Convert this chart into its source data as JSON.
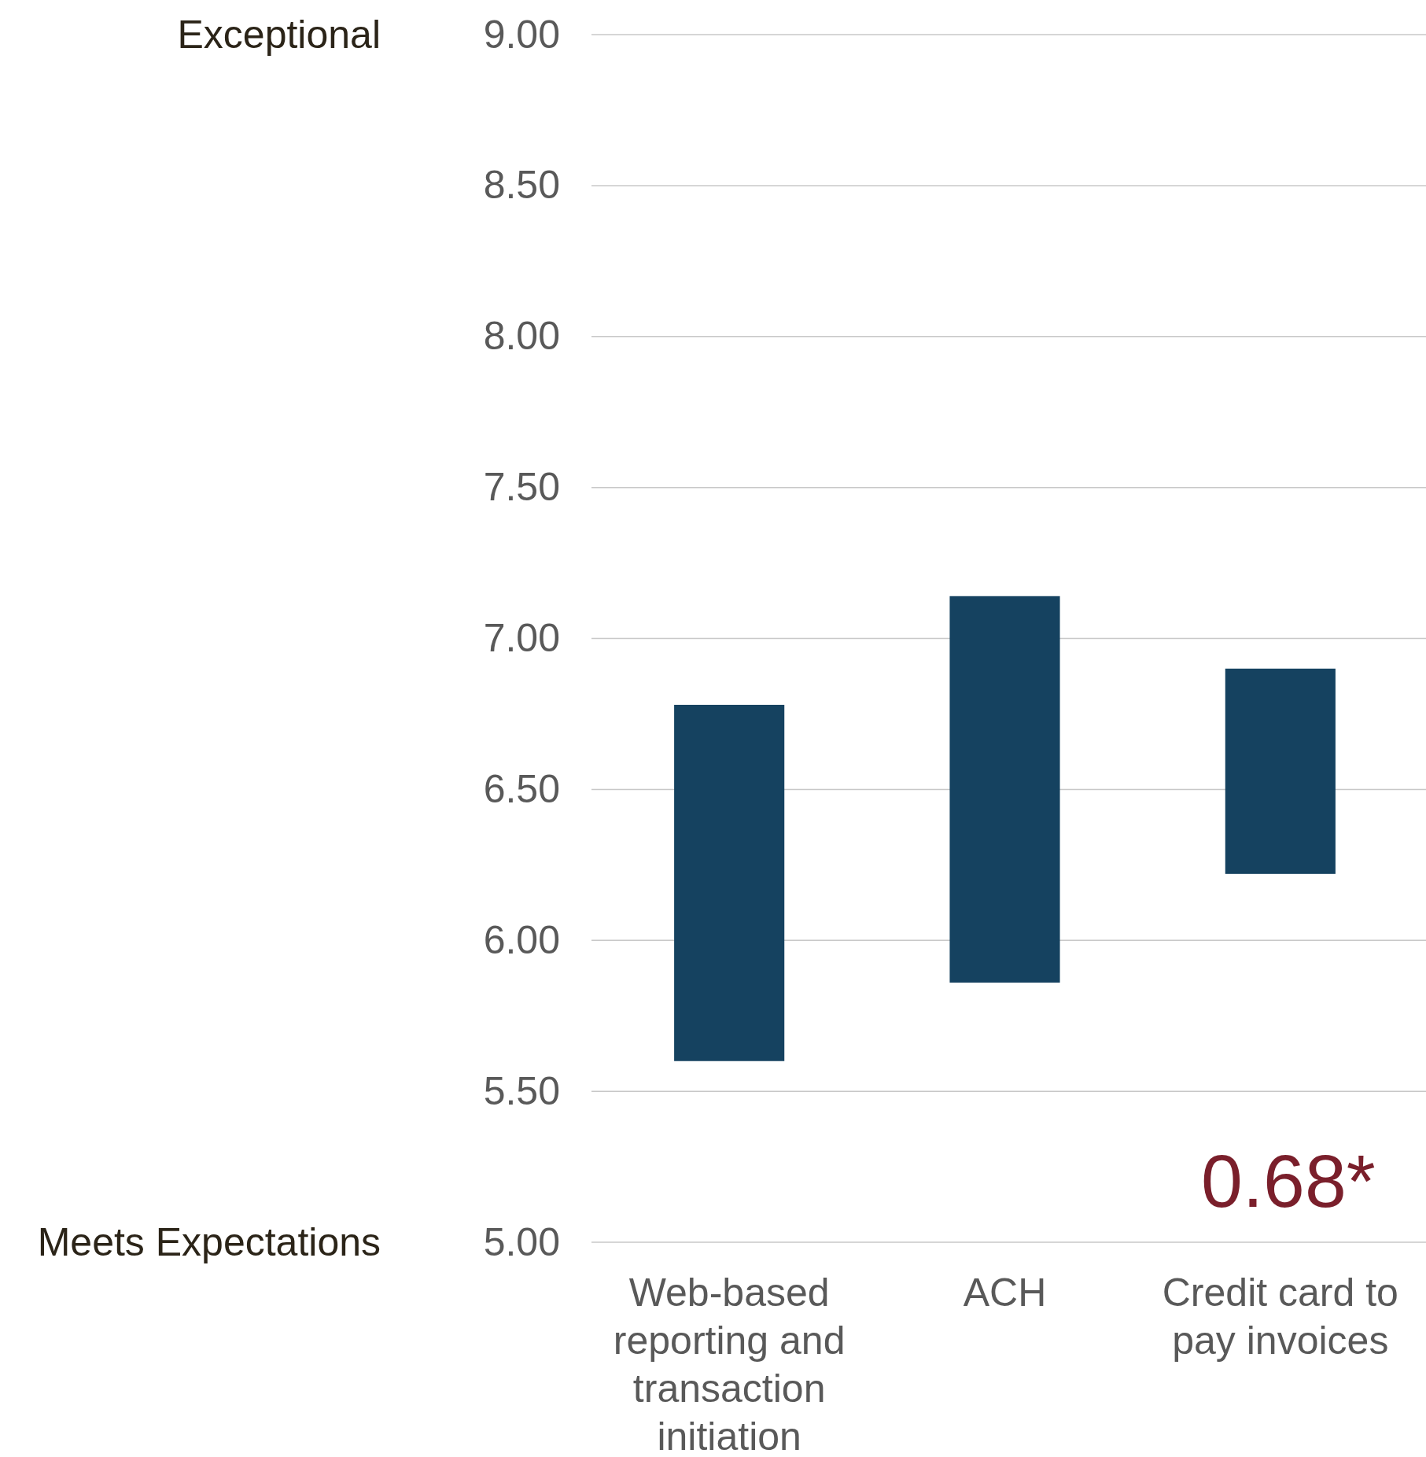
{
  "chart_data": {
    "type": "bar",
    "categories": [
      "Web-based reporting and transaction initiation",
      "ACH",
      "Credit card to pay invoices"
    ],
    "values": [
      1.18,
      1.28,
      0.68
    ],
    "base": [
      5.6,
      5.86,
      6.22
    ],
    "color": "#154260",
    "ylim": [
      5,
      9
    ],
    "yticks": [
      {
        "value": 5,
        "label": "5.00"
      },
      {
        "value": 5.5,
        "label": "5.50"
      },
      {
        "value": 6,
        "label": "6.00"
      },
      {
        "value": 6.5,
        "label": "6.50"
      },
      {
        "value": 7,
        "label": "7.00"
      },
      {
        "value": 7.5,
        "label": "7.50"
      },
      {
        "value": 8,
        "label": "8.00"
      },
      {
        "value": 8.5,
        "label": "8.50"
      },
      {
        "value": 9,
        "label": "9.00"
      }
    ],
    "grid": "y",
    "annotations": [
      "Exceptional",
      "Meets Expectations",
      "0.68*"
    ]
  }
}
